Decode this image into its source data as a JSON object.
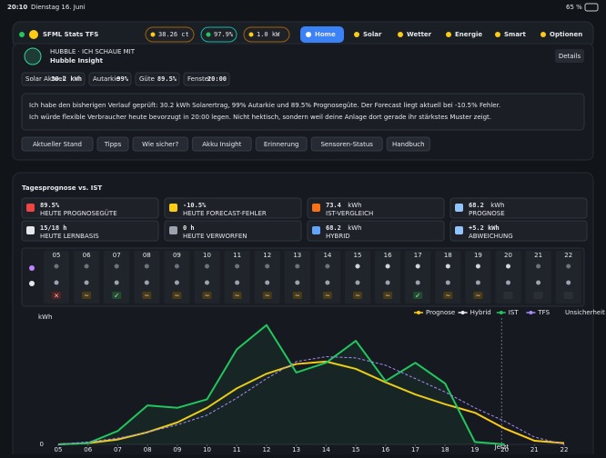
{
  "status_bar": {
    "time": "20:10",
    "date": "Dienstag 16. Juni",
    "battery": "65 %"
  },
  "nav": {
    "title": "SFML Stats TFS",
    "pills": [
      "38.26 ct",
      "97.9%",
      "1.0 kW"
    ],
    "items": [
      "Home",
      "Solar",
      "Wetter",
      "Energie",
      "Smart",
      "Optionen"
    ]
  },
  "insight": {
    "kicker": "HUBBLE · ICH SCHAUE MIT",
    "title": "Hubble Insight",
    "button": "Details",
    "stats": [
      {
        "label": "Solar Aktuell",
        "value": "30.2 kWh"
      },
      {
        "label": "Autarkie",
        "value": "99%"
      },
      {
        "label": "Güte",
        "value": "89.5%"
      },
      {
        "label": "Fenster",
        "value": "20:00"
      }
    ],
    "message": "Ich habe den bisherigen Verlauf geprüft: 30.2 kWh Solarertrag, 99% Autarkie und 89.5% Prognosegüte. Der Forecast liegt aktuell bei -10.5% Fehler.",
    "highlight": "Ich würde flexible Verbraucher heute bevorzugt in 20:00 legen. Nicht hektisch, sondern weil deine Anlage dort gerade ihr stärkstes Muster zeigt.",
    "actions": [
      "Aktueller Stand",
      "Tipps",
      "Wie sicher?",
      "Akku Insight",
      "Erinnerung",
      "Sensoren-Status",
      "Handbuch"
    ]
  },
  "section": {
    "title": "Tagesprognose vs. IST",
    "tiles": [
      {
        "value": "89.5%",
        "label": "HEUTE PROGNOSEGÜTE"
      },
      {
        "value": "-10.5%",
        "label": "HEUTE FORECAST-FEHLER"
      },
      {
        "value": "73.4",
        "unit": "kWh",
        "label": "IST-VERGLEICH"
      },
      {
        "value": "68.2",
        "unit": "kWh",
        "label": "PROGNOSE"
      },
      {
        "value": "15/18 h",
        "label": "HEUTE LERNBASIS"
      },
      {
        "value": "0 h",
        "label": "HEUTE VERWORFEN"
      },
      {
        "value": "68.2",
        "unit": "kWh",
        "label": "HYBRID"
      },
      {
        "value": "+5.2 kWh",
        "label": "ABWEICHUNG"
      }
    ]
  },
  "weather": {
    "hours": [
      "05",
      "06",
      "07",
      "08",
      "09",
      "10",
      "11",
      "12",
      "13",
      "14",
      "15",
      "16",
      "17",
      "18",
      "19",
      "20",
      "21",
      "22"
    ],
    "badges": [
      "×",
      "~",
      "✓",
      "~",
      "~",
      "~",
      "~",
      "~",
      "~",
      "~",
      "~",
      "~",
      "✓",
      "~",
      "~"
    ]
  },
  "chart_data": {
    "type": "line",
    "y_label": "kWh",
    "x": [
      5,
      6,
      7,
      8,
      9,
      10,
      11,
      12,
      13,
      14,
      15,
      16,
      17,
      18,
      19,
      20,
      21,
      22
    ],
    "xlim": [
      5,
      22
    ],
    "xticks": [
      {
        "value": 5,
        "label": "05"
      },
      {
        "value": 6,
        "label": "06"
      },
      {
        "value": 7,
        "label": "07"
      },
      {
        "value": 8,
        "label": "08"
      },
      {
        "value": 9,
        "label": "09"
      },
      {
        "value": 10,
        "label": "10"
      },
      {
        "value": 11,
        "label": "11"
      },
      {
        "value": 12,
        "label": "12"
      },
      {
        "value": 13,
        "label": "13"
      },
      {
        "value": 14,
        "label": "14"
      },
      {
        "value": 15,
        "label": "15"
      },
      {
        "value": 16,
        "label": "16"
      },
      {
        "value": 17,
        "label": "17"
      },
      {
        "value": 18,
        "label": "18"
      },
      {
        "value": 19,
        "label": "19"
      },
      {
        "value": 20,
        "label": "20"
      },
      {
        "value": 21,
        "label": "21"
      },
      {
        "value": 22,
        "label": "22"
      }
    ],
    "ylim": [
      0,
      10
    ],
    "yticks": [
      0
    ],
    "series": [
      {
        "name": "Prognose",
        "color": "#facc15",
        "values": [
          0,
          0.1,
          0.4,
          1.0,
          1.8,
          3.0,
          4.6,
          5.8,
          6.6,
          6.8,
          6.2,
          5.1,
          4.1,
          3.3,
          2.6,
          1.3,
          0.3,
          0.1
        ]
      },
      {
        "name": "Hybrid",
        "color": "#e5e7eb",
        "values": [
          null,
          null,
          null,
          null,
          null,
          null,
          null,
          null,
          null,
          null,
          null,
          null,
          null,
          null,
          null,
          null,
          null,
          null
        ]
      },
      {
        "name": "IST",
        "color": "#22c55e",
        "values": [
          0,
          0.1,
          1.1,
          3.2,
          3.0,
          3.7,
          7.8,
          9.8,
          5.9,
          6.7,
          8.5,
          5.2,
          6.7,
          5.0,
          0.2,
          0,
          null,
          null
        ]
      },
      {
        "name": "TFS",
        "color": "#a78bfa",
        "dashed": true,
        "values": [
          0,
          0.2,
          0.5,
          1.0,
          1.6,
          2.4,
          3.8,
          5.4,
          6.8,
          7.2,
          7.1,
          6.5,
          5.4,
          4.3,
          3.0,
          1.9,
          0.6,
          0
        ]
      }
    ],
    "band_label": "Unsicherheit",
    "now": {
      "x": 19.9,
      "label": "Jetzt"
    }
  }
}
